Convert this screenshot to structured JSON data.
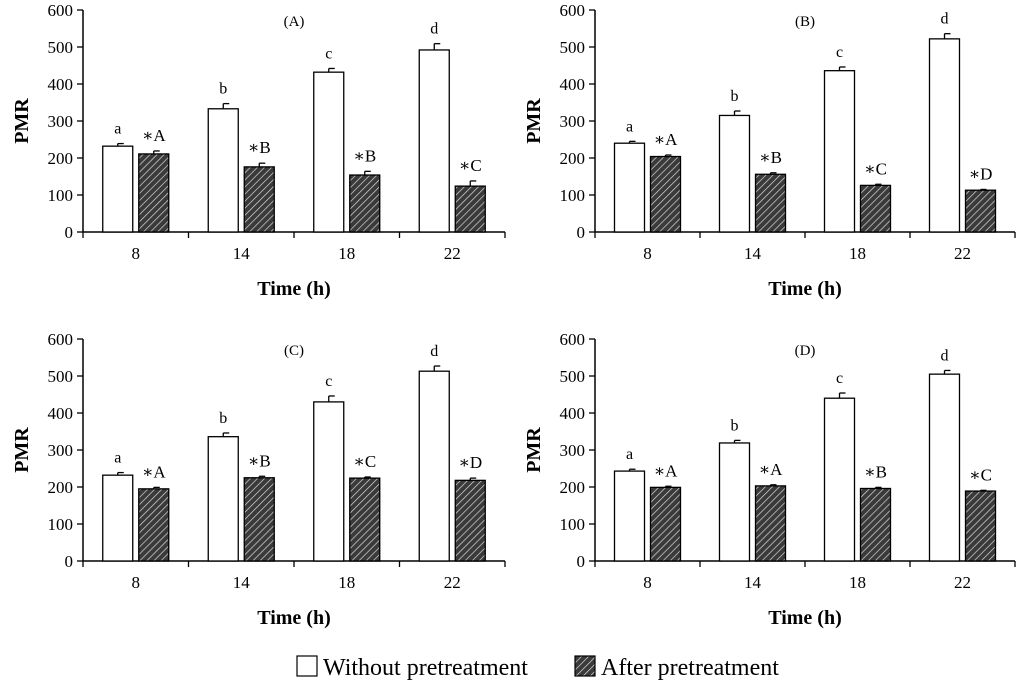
{
  "chart_data": [
    {
      "type": "bar",
      "title": "(A)",
      "xlabel": "Time (h)",
      "ylabel": "PMR",
      "ylim": [
        0,
        600
      ],
      "yticks": [
        0,
        100,
        200,
        300,
        400,
        500,
        600
      ],
      "categories": [
        "8",
        "14",
        "18",
        "22"
      ],
      "series": [
        {
          "name": "Without pretreatment",
          "values": [
            232,
            333,
            432,
            492
          ],
          "errors": [
            7,
            14,
            10,
            17
          ],
          "labels": [
            "a",
            "b",
            "c",
            "d"
          ]
        },
        {
          "name": "After pretreatment",
          "values": [
            211,
            176,
            154,
            124
          ],
          "errors": [
            8,
            10,
            10,
            14
          ],
          "labels": [
            "*A",
            "*B",
            "*B",
            "*C"
          ]
        }
      ]
    },
    {
      "type": "bar",
      "title": "(B)",
      "xlabel": "Time (h)",
      "ylabel": "PMR",
      "ylim": [
        0,
        600
      ],
      "yticks": [
        0,
        100,
        200,
        300,
        400,
        500,
        600
      ],
      "categories": [
        "8",
        "14",
        "18",
        "22"
      ],
      "series": [
        {
          "name": "Without pretreatment",
          "values": [
            240,
            315,
            436,
            522
          ],
          "errors": [
            5,
            12,
            10,
            14
          ],
          "labels": [
            "a",
            "b",
            "c",
            "d"
          ]
        },
        {
          "name": "After pretreatment",
          "values": [
            204,
            156,
            126,
            113
          ],
          "errors": [
            4,
            4,
            3,
            2
          ],
          "labels": [
            "*A",
            "*B",
            "*C",
            "*D"
          ]
        }
      ]
    },
    {
      "type": "bar",
      "title": "(C)",
      "xlabel": "Time (h)",
      "ylabel": "PMR",
      "ylim": [
        0,
        600
      ],
      "yticks": [
        0,
        100,
        200,
        300,
        400,
        500,
        600
      ],
      "categories": [
        "8",
        "14",
        "18",
        "22"
      ],
      "series": [
        {
          "name": "Without pretreatment",
          "values": [
            232,
            336,
            430,
            513
          ],
          "errors": [
            7,
            10,
            16,
            14
          ],
          "labels": [
            "a",
            "b",
            "c",
            "d"
          ]
        },
        {
          "name": "After pretreatment",
          "values": [
            195,
            225,
            224,
            218
          ],
          "errors": [
            4,
            4,
            3,
            6
          ],
          "labels": [
            "*A",
            "*B",
            "*C",
            "*D"
          ]
        }
      ]
    },
    {
      "type": "bar",
      "title": "(D)",
      "xlabel": "Time (h)",
      "ylabel": "PMR",
      "ylim": [
        0,
        600
      ],
      "yticks": [
        0,
        100,
        200,
        300,
        400,
        500,
        600
      ],
      "categories": [
        "8",
        "14",
        "18",
        "22"
      ],
      "series": [
        {
          "name": "Without pretreatment",
          "values": [
            243,
            319,
            440,
            505
          ],
          "errors": [
            5,
            7,
            14,
            10
          ],
          "labels": [
            "a",
            "b",
            "c",
            "d"
          ]
        },
        {
          "name": "After pretreatment",
          "values": [
            199,
            203,
            196,
            189
          ],
          "errors": [
            3,
            3,
            3,
            2
          ],
          "labels": [
            "*A",
            "*A",
            "*B",
            "*C"
          ]
        }
      ]
    }
  ],
  "legend": {
    "position": "bottom-center",
    "items": [
      {
        "label": "Without pretreatment",
        "style": "open"
      },
      {
        "label": "After pretreatment",
        "style": "hatched"
      }
    ]
  },
  "colors": {
    "open_fill": "#ffffff",
    "hatched_fill": "#3a3a3a",
    "stroke": "#000000"
  }
}
